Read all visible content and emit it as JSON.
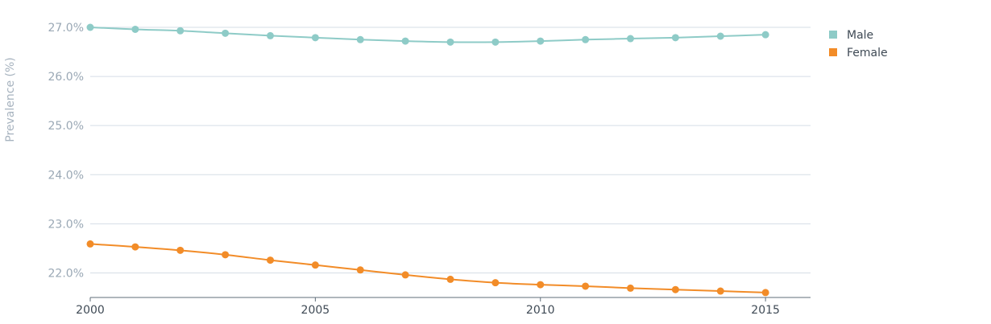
{
  "chart_data": {
    "type": "line",
    "title": "",
    "xlabel": "",
    "ylabel": "Prevalence (%)",
    "x": [
      2000,
      2001,
      2002,
      2003,
      2004,
      2005,
      2006,
      2007,
      2008,
      2009,
      2010,
      2011,
      2012,
      2013,
      2014,
      2015
    ],
    "xlim": [
      2000,
      2016
    ],
    "ylim": [
      21.5,
      27.0
    ],
    "x_ticks": [
      {
        "value": 2000,
        "label": "2000"
      },
      {
        "value": 2005,
        "label": "2005"
      },
      {
        "value": 2010,
        "label": "2010"
      },
      {
        "value": 2015,
        "label": "2015"
      }
    ],
    "y_ticks": [
      {
        "value": 22,
        "label": "22.0%"
      },
      {
        "value": 23,
        "label": "23.0%"
      },
      {
        "value": 24,
        "label": "24.0%"
      },
      {
        "value": 25,
        "label": "25.0%"
      },
      {
        "value": 26,
        "label": "26.0%"
      },
      {
        "value": 27,
        "label": "27.0%"
      }
    ],
    "grid": true,
    "legend_position": "top-right",
    "series": [
      {
        "name": "Male",
        "color": "#8ecbc7",
        "values": [
          27.0,
          26.96,
          26.93,
          26.88,
          26.83,
          26.79,
          26.75,
          26.72,
          26.7,
          26.7,
          26.72,
          26.75,
          26.77,
          26.79,
          26.82,
          26.85
        ]
      },
      {
        "name": "Female",
        "color": "#f28c28",
        "values": [
          22.59,
          22.53,
          22.46,
          22.37,
          22.26,
          22.16,
          22.06,
          21.96,
          21.87,
          21.8,
          21.76,
          21.73,
          21.69,
          21.66,
          21.63,
          21.6
        ]
      }
    ]
  }
}
